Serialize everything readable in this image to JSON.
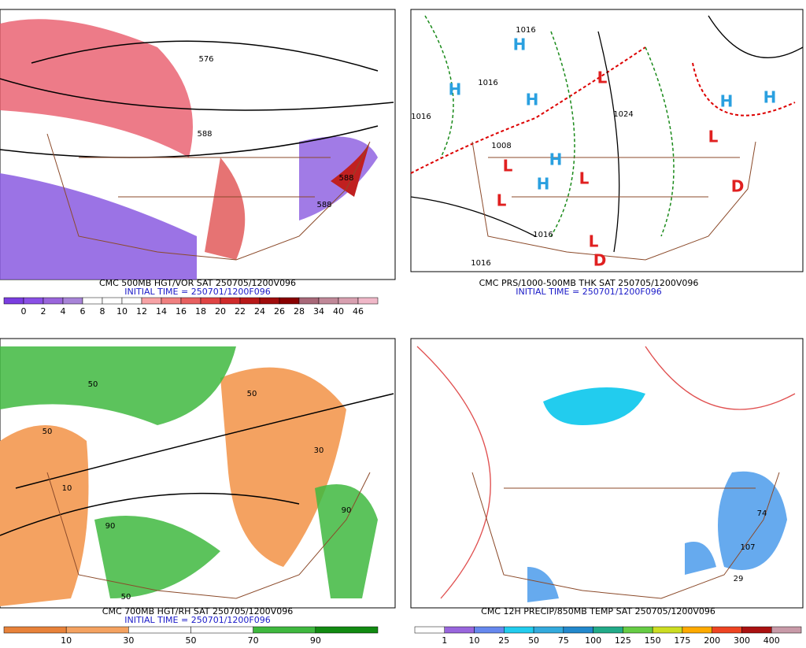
{
  "panels": [
    {
      "title": "CMC 500MB HGT/VOR SAT 250705/1200V096",
      "initial_time": "INITIAL TIME = 250701/1200F096",
      "colorbar": {
        "labels": [
          "0",
          "2",
          "4",
          "6",
          "8",
          "10",
          "12",
          "14",
          "16",
          "18",
          "20",
          "22",
          "24",
          "26",
          "28",
          "34",
          "40",
          "46"
        ],
        "colors": [
          "#7a3ee0",
          "#8a50e6",
          "#9a66dc",
          "#a884d8",
          "#ffffff",
          "#ffffff",
          "#ffffff",
          "#f7a3a6",
          "#f08080",
          "#e86060",
          "#e04444",
          "#d02a2a",
          "#b81818",
          "#a00c0c",
          "#880000",
          "#a86878",
          "#c08898",
          "#d8a0b0",
          "#f0b8c8"
        ]
      },
      "labels": [
        "576",
        "588",
        "588",
        "588"
      ]
    },
    {
      "title": "CMC PRS/1000-500MB THK SAT 250705/1200V096",
      "initial_time": "INITIAL TIME = 250701/1200F096",
      "labels": [
        "H",
        "H",
        "H",
        "H",
        "H",
        "H",
        "H",
        "L",
        "L",
        "L",
        "L",
        "L",
        "L",
        "D",
        "D",
        "1016",
        "1016",
        "1016",
        "1008",
        "1024",
        "1016",
        "1016"
      ]
    },
    {
      "title": "CMC 700MB HGT/RH SAT 250705/1200V096",
      "initial_time": "INITIAL TIME = 250701/1200F096",
      "colorbar": {
        "labels": [
          "10",
          "30",
          "50",
          "70",
          "90"
        ],
        "colors": [
          "#e8823a",
          "#f4a261",
          "#ffffff",
          "#ffffff",
          "#3fb83f",
          "#118a11"
        ]
      },
      "labels": [
        "50",
        "50",
        "10",
        "90",
        "50",
        "30",
        "90",
        "50"
      ]
    },
    {
      "title": "CMC 12H PRECIP/850MB TEMP SAT 250705/1200V096",
      "colorbar": {
        "labels": [
          "1",
          "10",
          "25",
          "50",
          "75",
          "100",
          "125",
          "150",
          "175",
          "200",
          "300",
          "400"
        ],
        "colors": [
          "#ffffff",
          "#9966dd",
          "#6688ee",
          "#22ccee",
          "#33aadd",
          "#2288cc",
          "#22aa88",
          "#66cc44",
          "#ccdd22",
          "#ffaa00",
          "#ee4422",
          "#aa1111",
          "#c89aa8"
        ]
      },
      "labels": [
        "74",
        "107",
        "29"
      ]
    }
  ]
}
